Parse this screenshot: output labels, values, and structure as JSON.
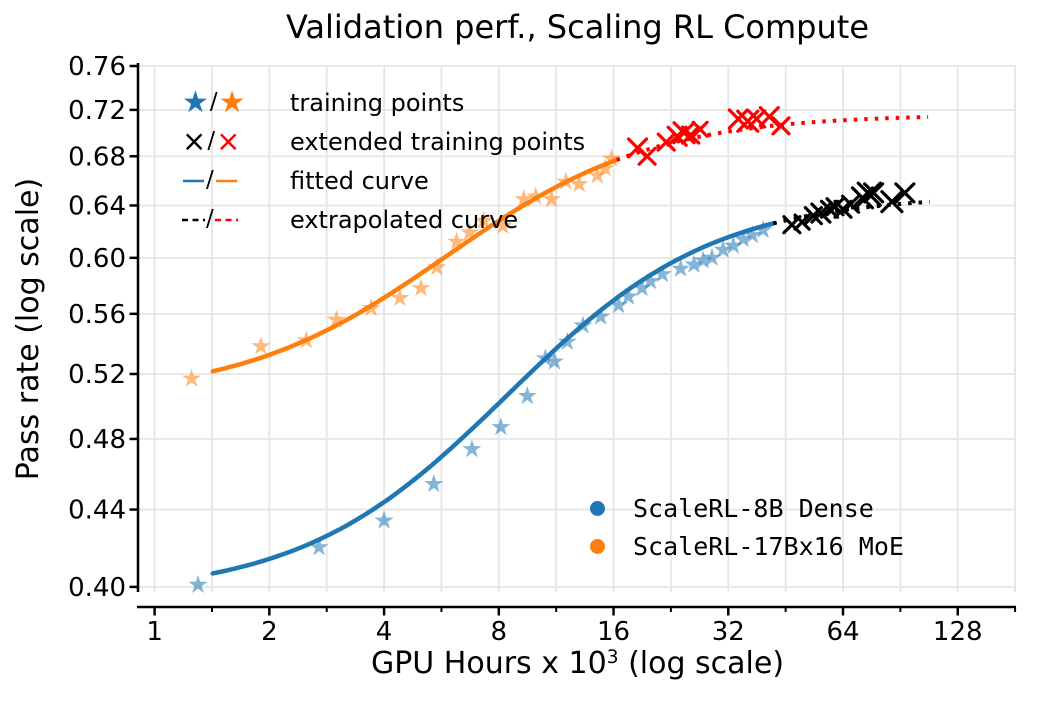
{
  "title": "Validation perf., Scaling RL Compute",
  "axes": {
    "x_label_base": "GPU Hours x 10",
    "x_label_sup": "3",
    "x_label_rest": " (log scale)",
    "y_label": "Pass rate (log scale)",
    "x_tick_labels": [
      "1",
      "2",
      "4",
      "8",
      "16",
      "32",
      "64",
      "128"
    ],
    "y_tick_labels": [
      "0.40",
      "0.44",
      "0.48",
      "0.52",
      "0.56",
      "0.60",
      "0.64",
      "0.68",
      "0.72",
      "0.76"
    ]
  },
  "legend": {
    "slash": "/",
    "items": [
      {
        "marker": "star-pair",
        "label": "training points"
      },
      {
        "marker": "cross-pair",
        "label": "extended training points"
      },
      {
        "marker": "solid-line-pair",
        "label": "fitted curve"
      },
      {
        "marker": "dashed-line-pair",
        "label": "extrapolated curve"
      }
    ]
  },
  "series_legend": {
    "items": [
      {
        "label": "ScaleRL-8B Dense",
        "color": "#1f77b4"
      },
      {
        "label": "ScaleRL-17Bx16 MoE",
        "color": "#ff7f0e"
      }
    ]
  },
  "chart_data": {
    "type": "line",
    "title": "Validation perf., Scaling RL Compute",
    "xlabel": "GPU Hours x 10^3 (log scale)",
    "ylabel": "Pass rate (log scale)",
    "x_scale": "log",
    "y_scale": "log",
    "xlim": [
      0.91,
      182
    ],
    "ylim": [
      0.3975,
      0.76
    ],
    "x_ticks": [
      1,
      2,
      4,
      8,
      16,
      32,
      64,
      128
    ],
    "x_minor_ticks": [
      1.4142,
      2.8284,
      5.6569,
      11.3137,
      22.6274,
      45.2548,
      90.5097,
      181.019
    ],
    "y_ticks": [
      0.4,
      0.44,
      0.48,
      0.52,
      0.56,
      0.6,
      0.64,
      0.68,
      0.72,
      0.76
    ],
    "grid_color": "#e6e6e6",
    "series": [
      {
        "name": "ScaleRL-8B Dense training points",
        "kind": "scatter",
        "marker": "star",
        "color": "#1f77b4",
        "opacity": 0.55,
        "size": 10,
        "points": [
          [
            1.3,
            0.401
          ],
          [
            2.7,
            0.42
          ],
          [
            4.0,
            0.434
          ],
          [
            5.4,
            0.454
          ],
          [
            6.8,
            0.474
          ],
          [
            8.1,
            0.487
          ],
          [
            9.5,
            0.506
          ],
          [
            10.6,
            0.53
          ],
          [
            11.2,
            0.528
          ],
          [
            12.1,
            0.541
          ],
          [
            13.3,
            0.552
          ],
          [
            14.8,
            0.558
          ],
          [
            16.5,
            0.566
          ],
          [
            17.5,
            0.572
          ],
          [
            19.0,
            0.578
          ],
          [
            20.0,
            0.583
          ],
          [
            21.5,
            0.588
          ],
          [
            24.0,
            0.592
          ],
          [
            26.0,
            0.595
          ],
          [
            27.5,
            0.598
          ],
          [
            29.0,
            0.6
          ],
          [
            31.0,
            0.606
          ],
          [
            33.0,
            0.609
          ],
          [
            35.0,
            0.614
          ],
          [
            37.0,
            0.617
          ],
          [
            39.5,
            0.621
          ]
        ]
      },
      {
        "name": "ScaleRL-17Bx16 MoE training points",
        "kind": "scatter",
        "marker": "star",
        "color": "#ff7f0e",
        "opacity": 0.55,
        "size": 10,
        "points": [
          [
            1.25,
            0.517
          ],
          [
            1.9,
            0.538
          ],
          [
            2.5,
            0.542
          ],
          [
            3.0,
            0.556
          ],
          [
            3.7,
            0.564
          ],
          [
            4.4,
            0.571
          ],
          [
            5.0,
            0.578
          ],
          [
            5.5,
            0.593
          ],
          [
            6.2,
            0.612
          ],
          [
            6.7,
            0.619
          ],
          [
            7.3,
            0.628
          ],
          [
            8.2,
            0.624
          ],
          [
            9.3,
            0.645
          ],
          [
            10.0,
            0.647
          ],
          [
            11.0,
            0.645
          ],
          [
            12.0,
            0.659
          ],
          [
            13.0,
            0.657
          ],
          [
            14.5,
            0.664
          ],
          [
            15.2,
            0.67
          ],
          [
            15.8,
            0.678
          ]
        ]
      },
      {
        "name": "ScaleRL-8B Dense fitted curve",
        "kind": "curve",
        "style": "solid",
        "color": "#1f77b4",
        "width": 4.5,
        "x_start": 1.42,
        "x_end": 42,
        "sigmoid": {
          "A": 0.396,
          "K": 0.648,
          "x0": 9.8,
          "s": 0.62
        }
      },
      {
        "name": "ScaleRL-17Bx16 MoE fitted curve",
        "kind": "curve",
        "style": "solid",
        "color": "#ff7f0e",
        "width": 4.5,
        "x_start": 1.42,
        "x_end": 16.3,
        "sigmoid": {
          "A": 0.505,
          "K": 0.716,
          "x0": 6.5,
          "s": 0.62
        }
      },
      {
        "name": "ScaleRL-8B Dense extrapolated curve",
        "kind": "curve",
        "style": "dotted",
        "color": "#000000",
        "width": 4,
        "x_start": 42,
        "x_end": 108,
        "sigmoid": {
          "A": 0.396,
          "K": 0.648,
          "x0": 9.8,
          "s": 0.62
        }
      },
      {
        "name": "ScaleRL-17Bx16 MoE extrapolated curve",
        "kind": "curve",
        "style": "dotted",
        "color": "#ff0000",
        "width": 4,
        "x_start": 16.3,
        "x_end": 107,
        "sigmoid": {
          "A": 0.505,
          "K": 0.716,
          "x0": 6.5,
          "s": 0.62
        }
      },
      {
        "name": "ScaleRL-8B Dense extended training points",
        "kind": "scatter",
        "marker": "x",
        "color": "#000000",
        "opacity": 1,
        "size": 8,
        "points": [
          [
            47,
            0.625
          ],
          [
            50,
            0.627,
            7
          ],
          [
            53.5,
            0.632
          ],
          [
            56,
            0.634,
            9
          ],
          [
            59,
            0.637
          ],
          [
            61,
            0.639
          ],
          [
            64,
            0.637
          ],
          [
            67,
            0.641
          ],
          [
            72,
            0.646,
            10
          ],
          [
            75,
            0.649,
            11
          ],
          [
            77,
            0.65,
            9
          ],
          [
            86,
            0.643,
            10
          ],
          [
            93,
            0.65,
            9
          ]
        ]
      },
      {
        "name": "ScaleRL-17Bx16 MoE extended training points",
        "kind": "scatter",
        "marker": "x",
        "color": "#ff0000",
        "opacity": 1,
        "size": 8,
        "points": [
          [
            18.5,
            0.687,
            9
          ],
          [
            19.6,
            0.68
          ],
          [
            22,
            0.692
          ],
          [
            23.5,
            0.697,
            9
          ],
          [
            24.5,
            0.7,
            10
          ],
          [
            25.5,
            0.698
          ],
          [
            27,
            0.703,
            7
          ],
          [
            34,
            0.712,
            9
          ],
          [
            36,
            0.71,
            10
          ],
          [
            38,
            0.712
          ],
          [
            41,
            0.714,
            9
          ],
          [
            44,
            0.706
          ]
        ]
      }
    ]
  }
}
